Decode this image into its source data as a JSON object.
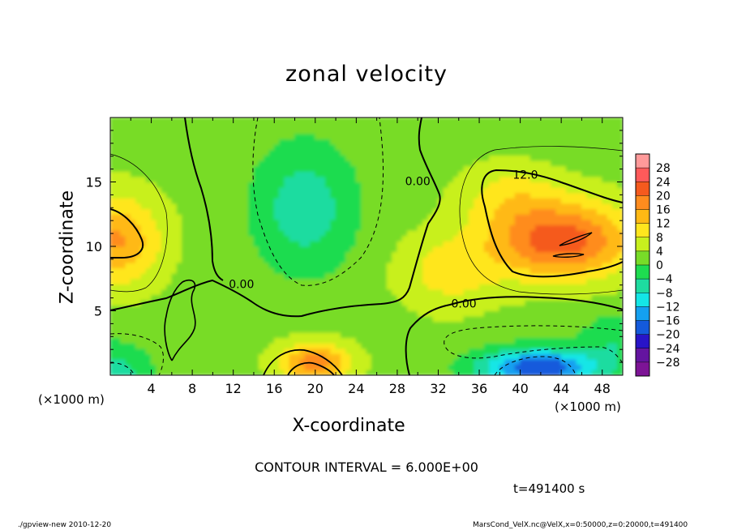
{
  "title": "zonal velocity",
  "x_axis": {
    "label": "X-coordinate",
    "unit_left": "(×1000 m)",
    "unit_right": "(×1000 m)"
  },
  "y_axis": {
    "label": "Z-coordinate"
  },
  "contour_interval_text": "CONTOUR INTERVAL = 6.000E+00",
  "time_text": "t=491400 s",
  "footer": {
    "left": "./gpview-new   2010-12-20",
    "right": "MarsCond_VelX.nc@VelX,x=0:50000,z=0:20000,t=491400"
  },
  "chart_data": {
    "type": "heatmap",
    "title": "zonal velocity",
    "xlabel": "X-coordinate",
    "ylabel": "Z-coordinate",
    "xlim": [
      0,
      50
    ],
    "ylim": [
      0,
      20
    ],
    "xticks": [
      4,
      8,
      12,
      16,
      20,
      24,
      28,
      32,
      36,
      40,
      44,
      48
    ],
    "yticks": [
      5,
      10,
      15
    ],
    "colorbar": {
      "labels": [
        "28",
        "24",
        "20",
        "16",
        "12",
        "8",
        "4",
        "0",
        "-4",
        "-8",
        "-12",
        "-16",
        "-20",
        "-24",
        "-28"
      ],
      "levels": [
        28,
        24,
        20,
        16,
        12,
        8,
        4,
        0,
        -4,
        -8,
        -12,
        -16,
        -20,
        -24,
        -28
      ],
      "colors": [
        "#ff9a9a",
        "#ff5a5a",
        "#f55a1e",
        "#ff8c1e",
        "#ffb914",
        "#ffe61e",
        "#c8f01e",
        "#78dc28",
        "#1edc50",
        "#1edca0",
        "#14e6e6",
        "#14a0f0",
        "#145adc",
        "#2814c8",
        "#6414a0",
        "#7d1496"
      ]
    },
    "contour_labels": [
      {
        "text": "0.00",
        "x": 30,
        "z": 15
      },
      {
        "text": "12.0",
        "x": 40.5,
        "z": 15.5
      },
      {
        "text": "0.00",
        "x": 12.8,
        "z": 7
      },
      {
        "text": "0.00",
        "x": 34.5,
        "z": 5.5
      }
    ],
    "field_features": [
      {
        "kind": "max",
        "x": 0.5,
        "z": 10.5,
        "value": 14,
        "sigma_x": 4.5,
        "sigma_z": 3.5
      },
      {
        "kind": "max",
        "x": 44,
        "z": 10.5,
        "value": 20,
        "sigma_x": 7,
        "sigma_z": 3
      },
      {
        "kind": "max",
        "x": 39,
        "z": 14,
        "value": 6,
        "sigma_x": 5,
        "sigma_z": 2.5
      },
      {
        "kind": "max",
        "x": 20,
        "z": 1.0,
        "value": 16,
        "sigma_x": 3.5,
        "sigma_z": 1.6
      },
      {
        "kind": "max",
        "x": 33,
        "z": 8,
        "value": 7,
        "sigma_x": 5,
        "sigma_z": 3
      },
      {
        "kind": "min",
        "x": 19,
        "z": 13,
        "value": -9,
        "sigma_x": 5,
        "sigma_z": 5
      },
      {
        "kind": "min",
        "x": 42,
        "z": 0.6,
        "value": -22,
        "sigma_x": 6,
        "sigma_z": 1.5
      },
      {
        "kind": "min",
        "x": 0,
        "z": 0,
        "value": -9,
        "sigma_x": 4,
        "sigma_z": 2.5
      },
      {
        "kind": "min",
        "x": 50,
        "z": 3,
        "value": -6,
        "sigma_x": 4,
        "sigma_z": 2
      }
    ]
  }
}
